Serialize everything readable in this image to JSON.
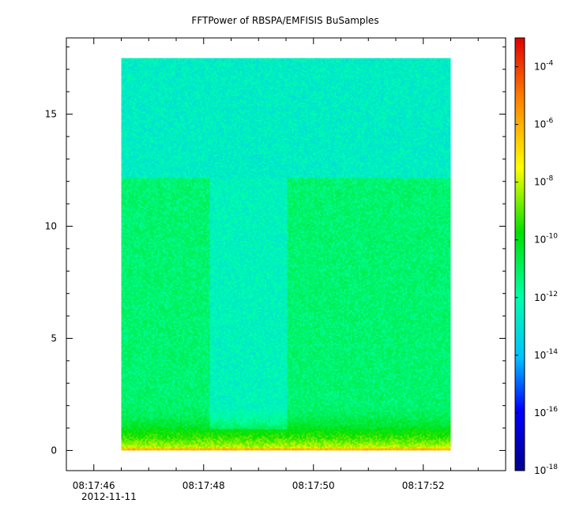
{
  "chart_data": {
    "type": "heatmap",
    "title": "FFTPower of RBSPA/EMFISIS  BuSamples",
    "xlabel": "",
    "ylabel": "",
    "x_axis": {
      "type": "time",
      "date": "2012-11-11",
      "ticks": [
        "08:17:46",
        "08:17:48",
        "08:17:50",
        "08:17:52"
      ],
      "date_label": "2012-11-11",
      "range": [
        "08:17:45.5",
        "08:17:53.5"
      ]
    },
    "y_axis": {
      "ticks": [
        "0",
        "5",
        "10",
        "15"
      ],
      "range": [
        -0.9,
        18.4
      ]
    },
    "colorbar": {
      "scale": "log",
      "range": [
        1e-18,
        0.001
      ],
      "ticks": [
        {
          "base": "10",
          "exp": "-4"
        },
        {
          "base": "10",
          "exp": "-6"
        },
        {
          "base": "10",
          "exp": "-8"
        },
        {
          "base": "10",
          "exp": "-10"
        },
        {
          "base": "10",
          "exp": "-12"
        },
        {
          "base": "10",
          "exp": "-14"
        },
        {
          "base": "10",
          "exp": "-16"
        },
        {
          "base": "10",
          "exp": "-18"
        }
      ],
      "colormap": [
        "#00008b",
        "#0000ff",
        "#00c0ff",
        "#00ffaa",
        "#00e000",
        "#ffff00",
        "#ff8000",
        "#e00000"
      ]
    },
    "spectrogram": {
      "time_start": "08:17:46.5",
      "time_end": "08:17:52.5",
      "freq_max": 17.5,
      "background_log_power": -11.2,
      "upper_band": {
        "freq_from": 12.2,
        "freq_to": 17.5,
        "log_power": -12.6
      },
      "quiet_interval": {
        "time_from": "08:17:48.1",
        "time_to": "08:17:49.5",
        "log_power": -12.4
      },
      "low_freq_enhancement": {
        "freq_below": 1.0,
        "log_power_peak": -7.5
      }
    }
  }
}
